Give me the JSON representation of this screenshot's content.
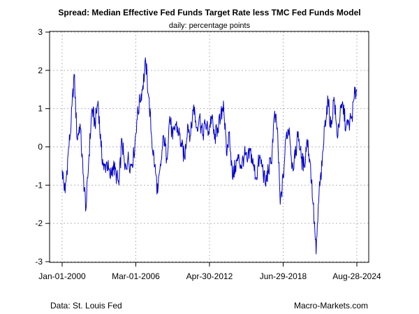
{
  "chart_data": {
    "type": "line",
    "title": "Spread: Median Effective Fed Funds Target Rate less TMC Fed Funds Model",
    "subtitle": "daily: percentage points",
    "xlabel": "",
    "ylabel": "",
    "x_tick_labels": [
      "Jan-01-2000",
      "Mar-01-2006",
      "Apr-30-2012",
      "Jun-29-2018",
      "Aug-28-2024"
    ],
    "y_tick_labels": [
      "-3",
      "-2",
      "-1",
      "0",
      "1",
      "2",
      "3"
    ],
    "xlim": [
      "2000-01-01",
      "2024-08-28"
    ],
    "ylim": [
      -3,
      3
    ],
    "grid": true,
    "series": [
      {
        "color": "#0000cc",
        "x": [
          "2000-01-01",
          "2000-04-01",
          "2000-07-01",
          "2000-10-01",
          "2001-01-01",
          "2001-04-01",
          "2001-07-01",
          "2001-10-01",
          "2002-01-01",
          "2002-04-01",
          "2002-07-01",
          "2002-10-01",
          "2003-01-01",
          "2003-04-01",
          "2003-07-01",
          "2003-10-01",
          "2004-01-01",
          "2004-04-01",
          "2004-07-01",
          "2004-10-01",
          "2005-01-01",
          "2005-04-01",
          "2005-07-01",
          "2005-10-01",
          "2006-01-01",
          "2006-04-01",
          "2006-07-01",
          "2006-10-01",
          "2007-01-01",
          "2007-04-01",
          "2007-07-01",
          "2007-10-01",
          "2008-01-01",
          "2008-04-01",
          "2008-07-01",
          "2008-10-01",
          "2009-01-01",
          "2009-04-01",
          "2009-07-01",
          "2009-10-01",
          "2010-01-01",
          "2010-04-01",
          "2010-07-01",
          "2010-10-01",
          "2011-01-01",
          "2011-04-01",
          "2011-07-01",
          "2011-10-01",
          "2012-01-01",
          "2012-04-01",
          "2012-07-01",
          "2012-10-01",
          "2013-01-01",
          "2013-04-01",
          "2013-07-01",
          "2013-10-01",
          "2014-01-01",
          "2014-04-01",
          "2014-07-01",
          "2014-10-01",
          "2015-01-01",
          "2015-04-01",
          "2015-07-01",
          "2015-10-01",
          "2016-01-01",
          "2016-04-01",
          "2016-07-01",
          "2016-10-01",
          "2017-01-01",
          "2017-04-01",
          "2017-07-01",
          "2017-10-01",
          "2018-01-01",
          "2018-04-01",
          "2018-07-01",
          "2018-10-01",
          "2019-01-01",
          "2019-04-01",
          "2019-07-01",
          "2019-10-01",
          "2020-01-01",
          "2020-04-01",
          "2020-07-01",
          "2020-10-01",
          "2021-01-01",
          "2021-04-01",
          "2021-07-01",
          "2021-10-01",
          "2022-01-01",
          "2022-04-01",
          "2022-07-01",
          "2022-10-01",
          "2023-01-01",
          "2023-04-01",
          "2023-07-01",
          "2023-10-01",
          "2024-01-01",
          "2024-04-01",
          "2024-07-01",
          "2024-08-28"
        ],
        "values": [
          -0.6,
          -1.2,
          -0.2,
          0.6,
          1.9,
          0.2,
          0.6,
          -0.7,
          -1.6,
          -0.2,
          1.0,
          0.6,
          1.2,
          0.0,
          -0.6,
          -0.4,
          -0.8,
          -0.5,
          -0.7,
          -1.0,
          0.2,
          -0.6,
          -0.3,
          -0.5,
          -0.2,
          0.7,
          1.2,
          1.6,
          2.2,
          1.3,
          0.2,
          -0.5,
          -1.2,
          -0.5,
          0.3,
          -0.3,
          0.8,
          0.2,
          0.6,
          0.4,
          0.0,
          -0.3,
          0.6,
          0.3,
          1.1,
          0.5,
          0.8,
          0.3,
          0.6,
          0.4,
          0.8,
          0.2,
          0.5,
          0.7,
          1.2,
          -0.2,
          0.4,
          -0.8,
          -0.5,
          -0.3,
          -0.5,
          -0.2,
          -0.4,
          -0.1,
          -0.5,
          -0.8,
          -0.3,
          -0.5,
          -1.0,
          -0.6,
          -0.4,
          0.8,
          0.5,
          -1.5,
          -0.8,
          0.3,
          0.5,
          -0.5,
          -0.3,
          0.4,
          -0.3,
          -0.5,
          0.2,
          -0.4,
          -1.5,
          -2.8,
          -1.2,
          -0.5,
          0.7,
          1.2,
          0.5,
          1.3,
          0.3,
          0.8,
          1.1,
          0.5,
          0.6,
          0.8,
          1.4,
          1.5
        ]
      }
    ]
  },
  "footer": {
    "source": "Data: St. Louis Fed",
    "credit": "Macro-Markets.com"
  }
}
